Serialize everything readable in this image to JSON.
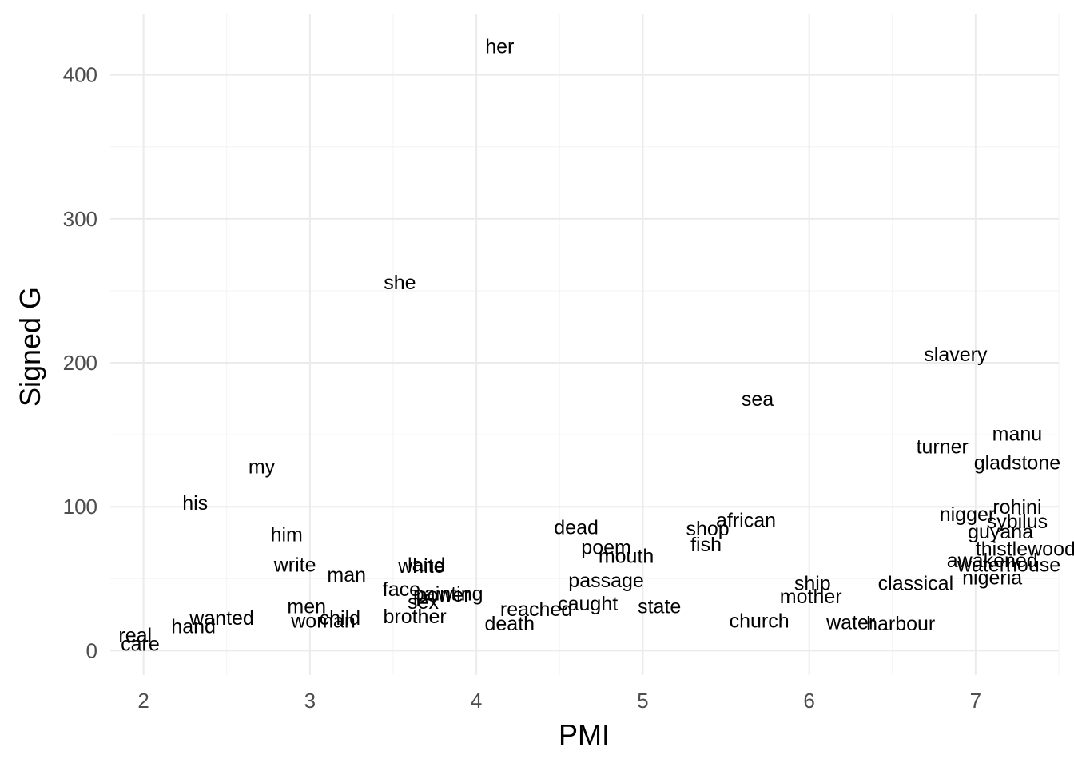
{
  "chart_data": {
    "type": "scatter",
    "title": "",
    "xlabel": "PMI",
    "ylabel": "Signed G",
    "xlim": [
      1.8,
      7.5
    ],
    "ylim": [
      -17,
      442
    ],
    "x_ticks": [
      2,
      3,
      4,
      5,
      6,
      7
    ],
    "y_ticks": [
      0,
      100,
      200,
      300,
      400
    ],
    "grid": true,
    "legend": "none",
    "points": [
      {
        "label": "her",
        "x": 4.14,
        "y": 420
      },
      {
        "label": "she",
        "x": 3.54,
        "y": 256
      },
      {
        "label": "slavery",
        "x": 6.88,
        "y": 206
      },
      {
        "label": "sea",
        "x": 5.69,
        "y": 175
      },
      {
        "label": "manu",
        "x": 7.25,
        "y": 151
      },
      {
        "label": "turner",
        "x": 6.8,
        "y": 142
      },
      {
        "label": "gladstone",
        "x": 7.25,
        "y": 131
      },
      {
        "label": "my",
        "x": 2.71,
        "y": 128
      },
      {
        "label": "his",
        "x": 2.31,
        "y": 103
      },
      {
        "label": "rohini",
        "x": 7.25,
        "y": 100
      },
      {
        "label": "nigger",
        "x": 6.95,
        "y": 95
      },
      {
        "label": "african",
        "x": 5.62,
        "y": 91
      },
      {
        "label": "sybilus",
        "x": 7.25,
        "y": 90
      },
      {
        "label": "dead",
        "x": 4.6,
        "y": 86
      },
      {
        "label": "shop",
        "x": 5.39,
        "y": 85
      },
      {
        "label": "guyana",
        "x": 7.15,
        "y": 83
      },
      {
        "label": "him",
        "x": 2.86,
        "y": 81
      },
      {
        "label": "fish",
        "x": 5.38,
        "y": 74
      },
      {
        "label": "poem",
        "x": 4.78,
        "y": 72
      },
      {
        "label": "thistlewood",
        "x": 7.3,
        "y": 71
      },
      {
        "label": "mouth",
        "x": 4.9,
        "y": 66
      },
      {
        "label": "awakened",
        "x": 7.1,
        "y": 63
      },
      {
        "label": "waterhouse",
        "x": 7.2,
        "y": 60
      },
      {
        "label": "write",
        "x": 2.91,
        "y": 60
      },
      {
        "label": "land",
        "x": 3.7,
        "y": 60
      },
      {
        "label": "white",
        "x": 3.67,
        "y": 59
      },
      {
        "label": "man",
        "x": 3.22,
        "y": 53
      },
      {
        "label": "nigeria",
        "x": 7.1,
        "y": 51
      },
      {
        "label": "passage",
        "x": 4.78,
        "y": 49
      },
      {
        "label": "ship",
        "x": 6.02,
        "y": 47
      },
      {
        "label": "classical",
        "x": 6.64,
        "y": 47
      },
      {
        "label": "face",
        "x": 3.55,
        "y": 43
      },
      {
        "label": "painting",
        "x": 3.83,
        "y": 40
      },
      {
        "label": "mother",
        "x": 6.01,
        "y": 38
      },
      {
        "label": "power",
        "x": 3.8,
        "y": 39
      },
      {
        "label": "sex",
        "x": 3.68,
        "y": 34
      },
      {
        "label": "men",
        "x": 2.98,
        "y": 31
      },
      {
        "label": "caught",
        "x": 4.67,
        "y": 33
      },
      {
        "label": "state",
        "x": 5.1,
        "y": 31
      },
      {
        "label": "reached",
        "x": 4.36,
        "y": 29
      },
      {
        "label": "wanted",
        "x": 2.47,
        "y": 23
      },
      {
        "label": "child",
        "x": 3.18,
        "y": 23
      },
      {
        "label": "woman",
        "x": 3.08,
        "y": 21
      },
      {
        "label": "brother",
        "x": 3.63,
        "y": 24
      },
      {
        "label": "hand",
        "x": 2.3,
        "y": 17
      },
      {
        "label": "real",
        "x": 1.95,
        "y": 11
      },
      {
        "label": "care",
        "x": 1.98,
        "y": 5
      },
      {
        "label": "death",
        "x": 4.2,
        "y": 19
      },
      {
        "label": "church",
        "x": 5.7,
        "y": 21
      },
      {
        "label": "water",
        "x": 6.25,
        "y": 20
      },
      {
        "label": "harbour",
        "x": 6.55,
        "y": 19
      }
    ]
  }
}
